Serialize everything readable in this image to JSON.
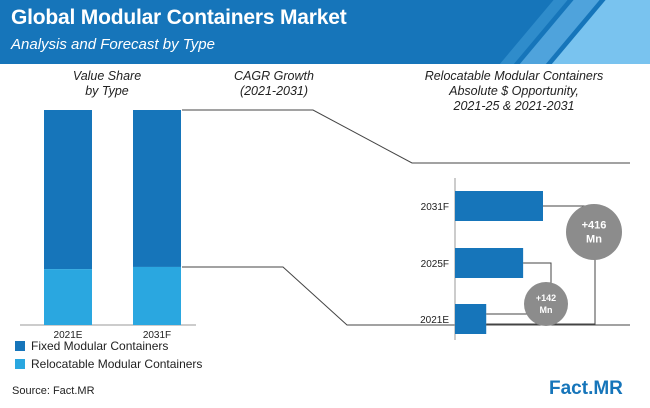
{
  "header": {
    "title": "Global Modular Containers Market",
    "subtitle": "Analysis and Forecast by Type"
  },
  "sections": {
    "value_share": "Value Share\nby Type",
    "cagr": "CAGR Growth\n(2021-2031)",
    "relocatable": "Relocatable Modular Containers\nAbsolute $ Opportunity,\n2021-25 & 2021-2031"
  },
  "colors": {
    "fixed": "#1675ba",
    "relocatable": "#2aa7e0",
    "circle": "#8c8c8c",
    "line": "#444444"
  },
  "chart_data": [
    {
      "type": "bar",
      "stacked": true,
      "title": "Value Share by Type",
      "categories": [
        "2021E",
        "2031F"
      ],
      "series": [
        {
          "name": "Fixed Modular Containers",
          "values": [
            74,
            73
          ]
        },
        {
          "name": "Relocatable Modular Containers",
          "values": [
            26,
            27
          ]
        }
      ],
      "ylim": [
        0,
        100
      ],
      "legend": "bottom-left"
    },
    {
      "type": "bar",
      "orientation": "horizontal",
      "title": "Relocatable Modular Containers Absolute $ Opportunity, 2021-25 & 2021-2031",
      "categories": [
        "2031F",
        "2025F",
        "2021E"
      ],
      "values": [
        155,
        120,
        55
      ],
      "annotations": [
        {
          "label": "+416\nMn",
          "from": "2021E",
          "to": "2031F"
        },
        {
          "label": "+142\nMn",
          "from": "2021E",
          "to": "2025F"
        }
      ]
    }
  ],
  "footer": {
    "source": "Source: Fact.MR",
    "brand_a": "Fact",
    "brand_dot": ".",
    "brand_b": "MR"
  }
}
